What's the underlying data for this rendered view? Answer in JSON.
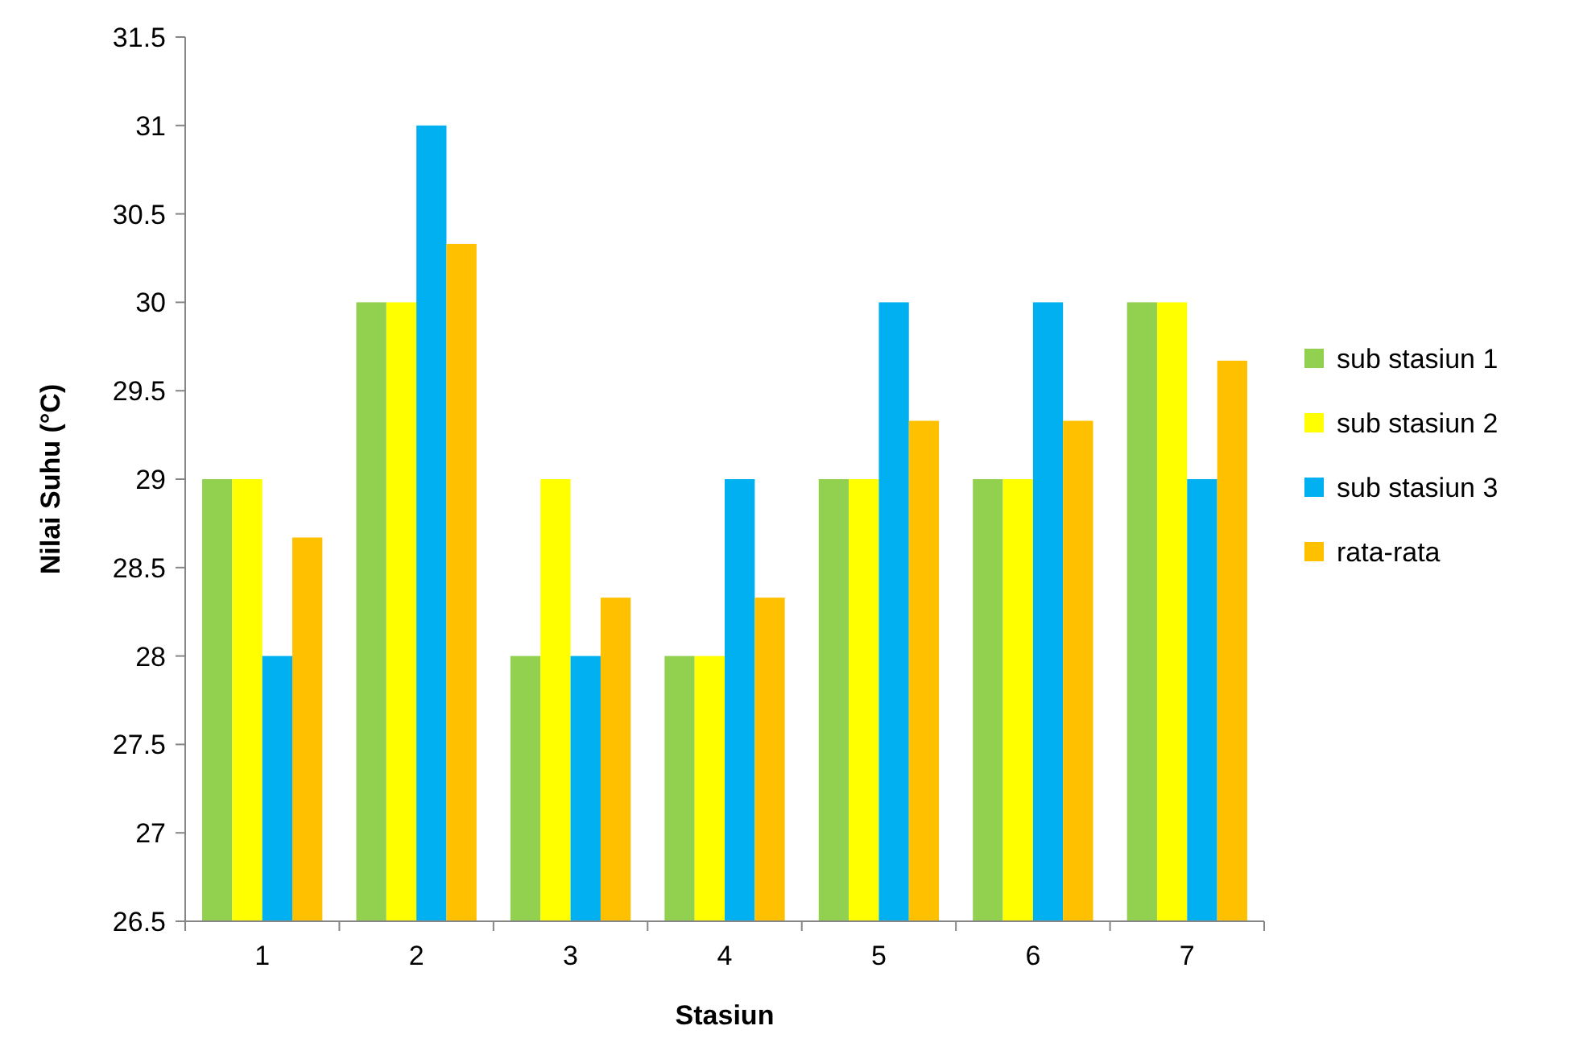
{
  "chart_data": {
    "type": "bar",
    "xlabel": "Stasiun",
    "ylabel": "Nilai Suhu (°C)",
    "categories": [
      "1",
      "2",
      "3",
      "4",
      "5",
      "6",
      "7"
    ],
    "series": [
      {
        "name": "sub stasiun 1",
        "color": "#92d050",
        "values": [
          29,
          30,
          28,
          28,
          29,
          29,
          30
        ]
      },
      {
        "name": "sub stasiun 2",
        "color": "#ffff00",
        "values": [
          29,
          30,
          29,
          28,
          29,
          29,
          30
        ]
      },
      {
        "name": "sub stasiun 3",
        "color": "#00b0f0",
        "values": [
          28,
          31,
          28,
          29,
          30,
          30,
          29
        ]
      },
      {
        "name": "rata-rata",
        "color": "#ffc000",
        "values": [
          28.67,
          30.33,
          28.33,
          28.33,
          29.33,
          29.33,
          29.67
        ]
      }
    ],
    "ylim": [
      26.5,
      31.5
    ],
    "yticks": [
      26.5,
      27,
      27.5,
      28,
      28.5,
      29,
      29.5,
      30,
      30.5,
      31,
      31.5
    ],
    "grid": false,
    "legend": "right"
  }
}
